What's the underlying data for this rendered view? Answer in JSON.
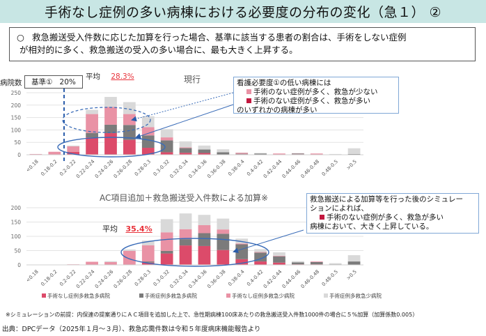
{
  "header": {
    "title": "手術なし症例の多い病棟における必要度の分布の変化（急１） ②"
  },
  "summary": {
    "bullet": "○",
    "line1": "救急搬送受入件数に応じた加算を行った場合、基準に該当する患者の割合は、手術をしない症例",
    "line2": "が相対的に多く、救急搬送の受入の多い場合に、最も大きく上昇する。"
  },
  "top_panel": {
    "ylabel": "病院数",
    "kijun_label": "基準①",
    "kijun_value": "20%",
    "avg_label": "平均",
    "avg_value": "28.3%",
    "title": "現行",
    "callout": {
      "line1": "看護必要度①の低い病棟には",
      "item1": "手術のない症例が多く、救急が少ない",
      "item2": "手術のない症例が多く、救急が多い",
      "line4": "のいずれかの病棟が多い"
    }
  },
  "bottom_panel": {
    "title": "AC項目追加＋救急搬送受入件数による加算※",
    "avg_label": "平均",
    "avg_value": "35.4%",
    "callout": {
      "line1": "救急搬送による加算等を行った後のシミュレー",
      "line2": "ションによれば、",
      "item1": "手術のない症例が多く、救急が多い",
      "line4": "病棟において、大きく上昇している。"
    }
  },
  "legend": [
    {
      "label": "手術なし症例多救急多病院",
      "color": "#dc4b6a"
    },
    {
      "label": "手術症例多救急多病院",
      "color": "#7b7b7b"
    },
    {
      "label": "手術なし症例多救急少病院",
      "color": "#e992a5"
    },
    {
      "label": "手術症例多救急少病院",
      "color": "#d9d9d9"
    }
  ],
  "footnote": "※シミュレーションの前提：内保連の提案通りにＡＣ項目を追加した上で、急性期病棟100床あたりの救急搬送受入件数1000件の場合に５%加算（加算係数0.005）",
  "source": "出典：DPCデータ（2025年１月～３月）、救急応需件数は令和５年度病床機能報告より",
  "chart_data": [
    {
      "type": "bar",
      "stacked": true,
      "title": "現行",
      "xlabel": "",
      "ylabel": "病院数",
      "ylim": [
        0,
        250
      ],
      "yticks": [
        0,
        50,
        100,
        150,
        200,
        250
      ],
      "grid": true,
      "reference_line": {
        "label": "基準① 20%",
        "position_between": [
          "0.18-0.2",
          "0.2-0.22"
        ]
      },
      "categories": [
        "<0.18",
        "0.18-0.2",
        "0.2-0.22",
        "0.22-0.24",
        "0.24-0.26",
        "0.26-0.28",
        "0.28-0.3",
        "0.3-0.32",
        "0.32-0.34",
        "0.34-0.36",
        "0.36-0.38",
        "0.38-0.4",
        "0.4-0.42",
        "0.42-0.44",
        "0.44-0.46",
        "0.46-0.48",
        "0.48-0.5",
        ">0.5"
      ],
      "series": [
        {
          "name": "手術なし症例多救急多病院",
          "color": "#dc4b6a",
          "values": [
            0,
            0,
            12,
            70,
            87,
            60,
            28,
            10,
            8,
            7,
            0,
            2,
            0,
            0,
            2,
            0,
            0,
            1
          ]
        },
        {
          "name": "手術症例多救急多病院",
          "color": "#7b7b7b",
          "values": [
            0,
            0,
            0,
            18,
            34,
            60,
            50,
            48,
            19,
            14,
            10,
            2,
            5,
            0,
            3,
            0,
            0,
            2
          ]
        },
        {
          "name": "手術なし症例多救急少病院",
          "color": "#e992a5",
          "values": [
            3,
            12,
            22,
            76,
            72,
            44,
            33,
            12,
            3,
            0,
            0,
            4,
            0,
            5,
            1,
            5,
            0,
            0
          ]
        },
        {
          "name": "手術症例多救急少病院",
          "color": "#d9d9d9",
          "values": [
            0,
            0,
            3,
            17,
            40,
            48,
            44,
            33,
            24,
            16,
            12,
            1,
            2,
            0,
            1,
            0,
            3,
            23
          ]
        }
      ],
      "annotations": [
        "平均 28.3%"
      ],
      "legend": "bottom"
    },
    {
      "type": "bar",
      "stacked": true,
      "title": "AC項目追加＋救急搬送受入件数による加算※",
      "xlabel": "",
      "ylabel": "",
      "ylim": [
        0,
        200
      ],
      "yticks": [
        0,
        50,
        100,
        150,
        200
      ],
      "grid": true,
      "categories": [
        "<0.18",
        "0.18-0.2",
        "0.2-0.22",
        "0.22-0.24",
        "0.24-0.26",
        "0.26-0.28",
        "0.28-0.3",
        "0.3-0.32",
        "0.32-0.34",
        "0.34-0.36",
        "0.36-0.38",
        "0.38-0.4",
        "0.4-0.42",
        "0.42-0.44",
        "0.44-0.46",
        "0.46-0.48",
        "0.48-0.5",
        ">0.5"
      ],
      "series": [
        {
          "name": "手術なし症例多救急多病院",
          "color": "#dc4b6a",
          "values": [
            0,
            0,
            0,
            0,
            0,
            0,
            8,
            40,
            68,
            66,
            52,
            20,
            12,
            8,
            2,
            2,
            0,
            0
          ]
        },
        {
          "name": "手術症例多救急多病院",
          "color": "#7b7b7b",
          "values": [
            0,
            0,
            0,
            0,
            0,
            0,
            4,
            9,
            22,
            45,
            57,
            52,
            31,
            22,
            7,
            8,
            2,
            12
          ]
        },
        {
          "name": "手術なし症例多救急少病院",
          "color": "#e992a5",
          "values": [
            0,
            0,
            2,
            11,
            10,
            49,
            57,
            65,
            35,
            28,
            15,
            3,
            2,
            2,
            0,
            2,
            0,
            0
          ]
        },
        {
          "name": "手術症例多救急少病院",
          "color": "#d9d9d9",
          "values": [
            0,
            0,
            0,
            0,
            3,
            5,
            16,
            46,
            55,
            36,
            38,
            17,
            10,
            12,
            4,
            0,
            4,
            22
          ]
        }
      ],
      "annotations": [
        "平均 35.4%"
      ],
      "legend": "bottom"
    }
  ]
}
